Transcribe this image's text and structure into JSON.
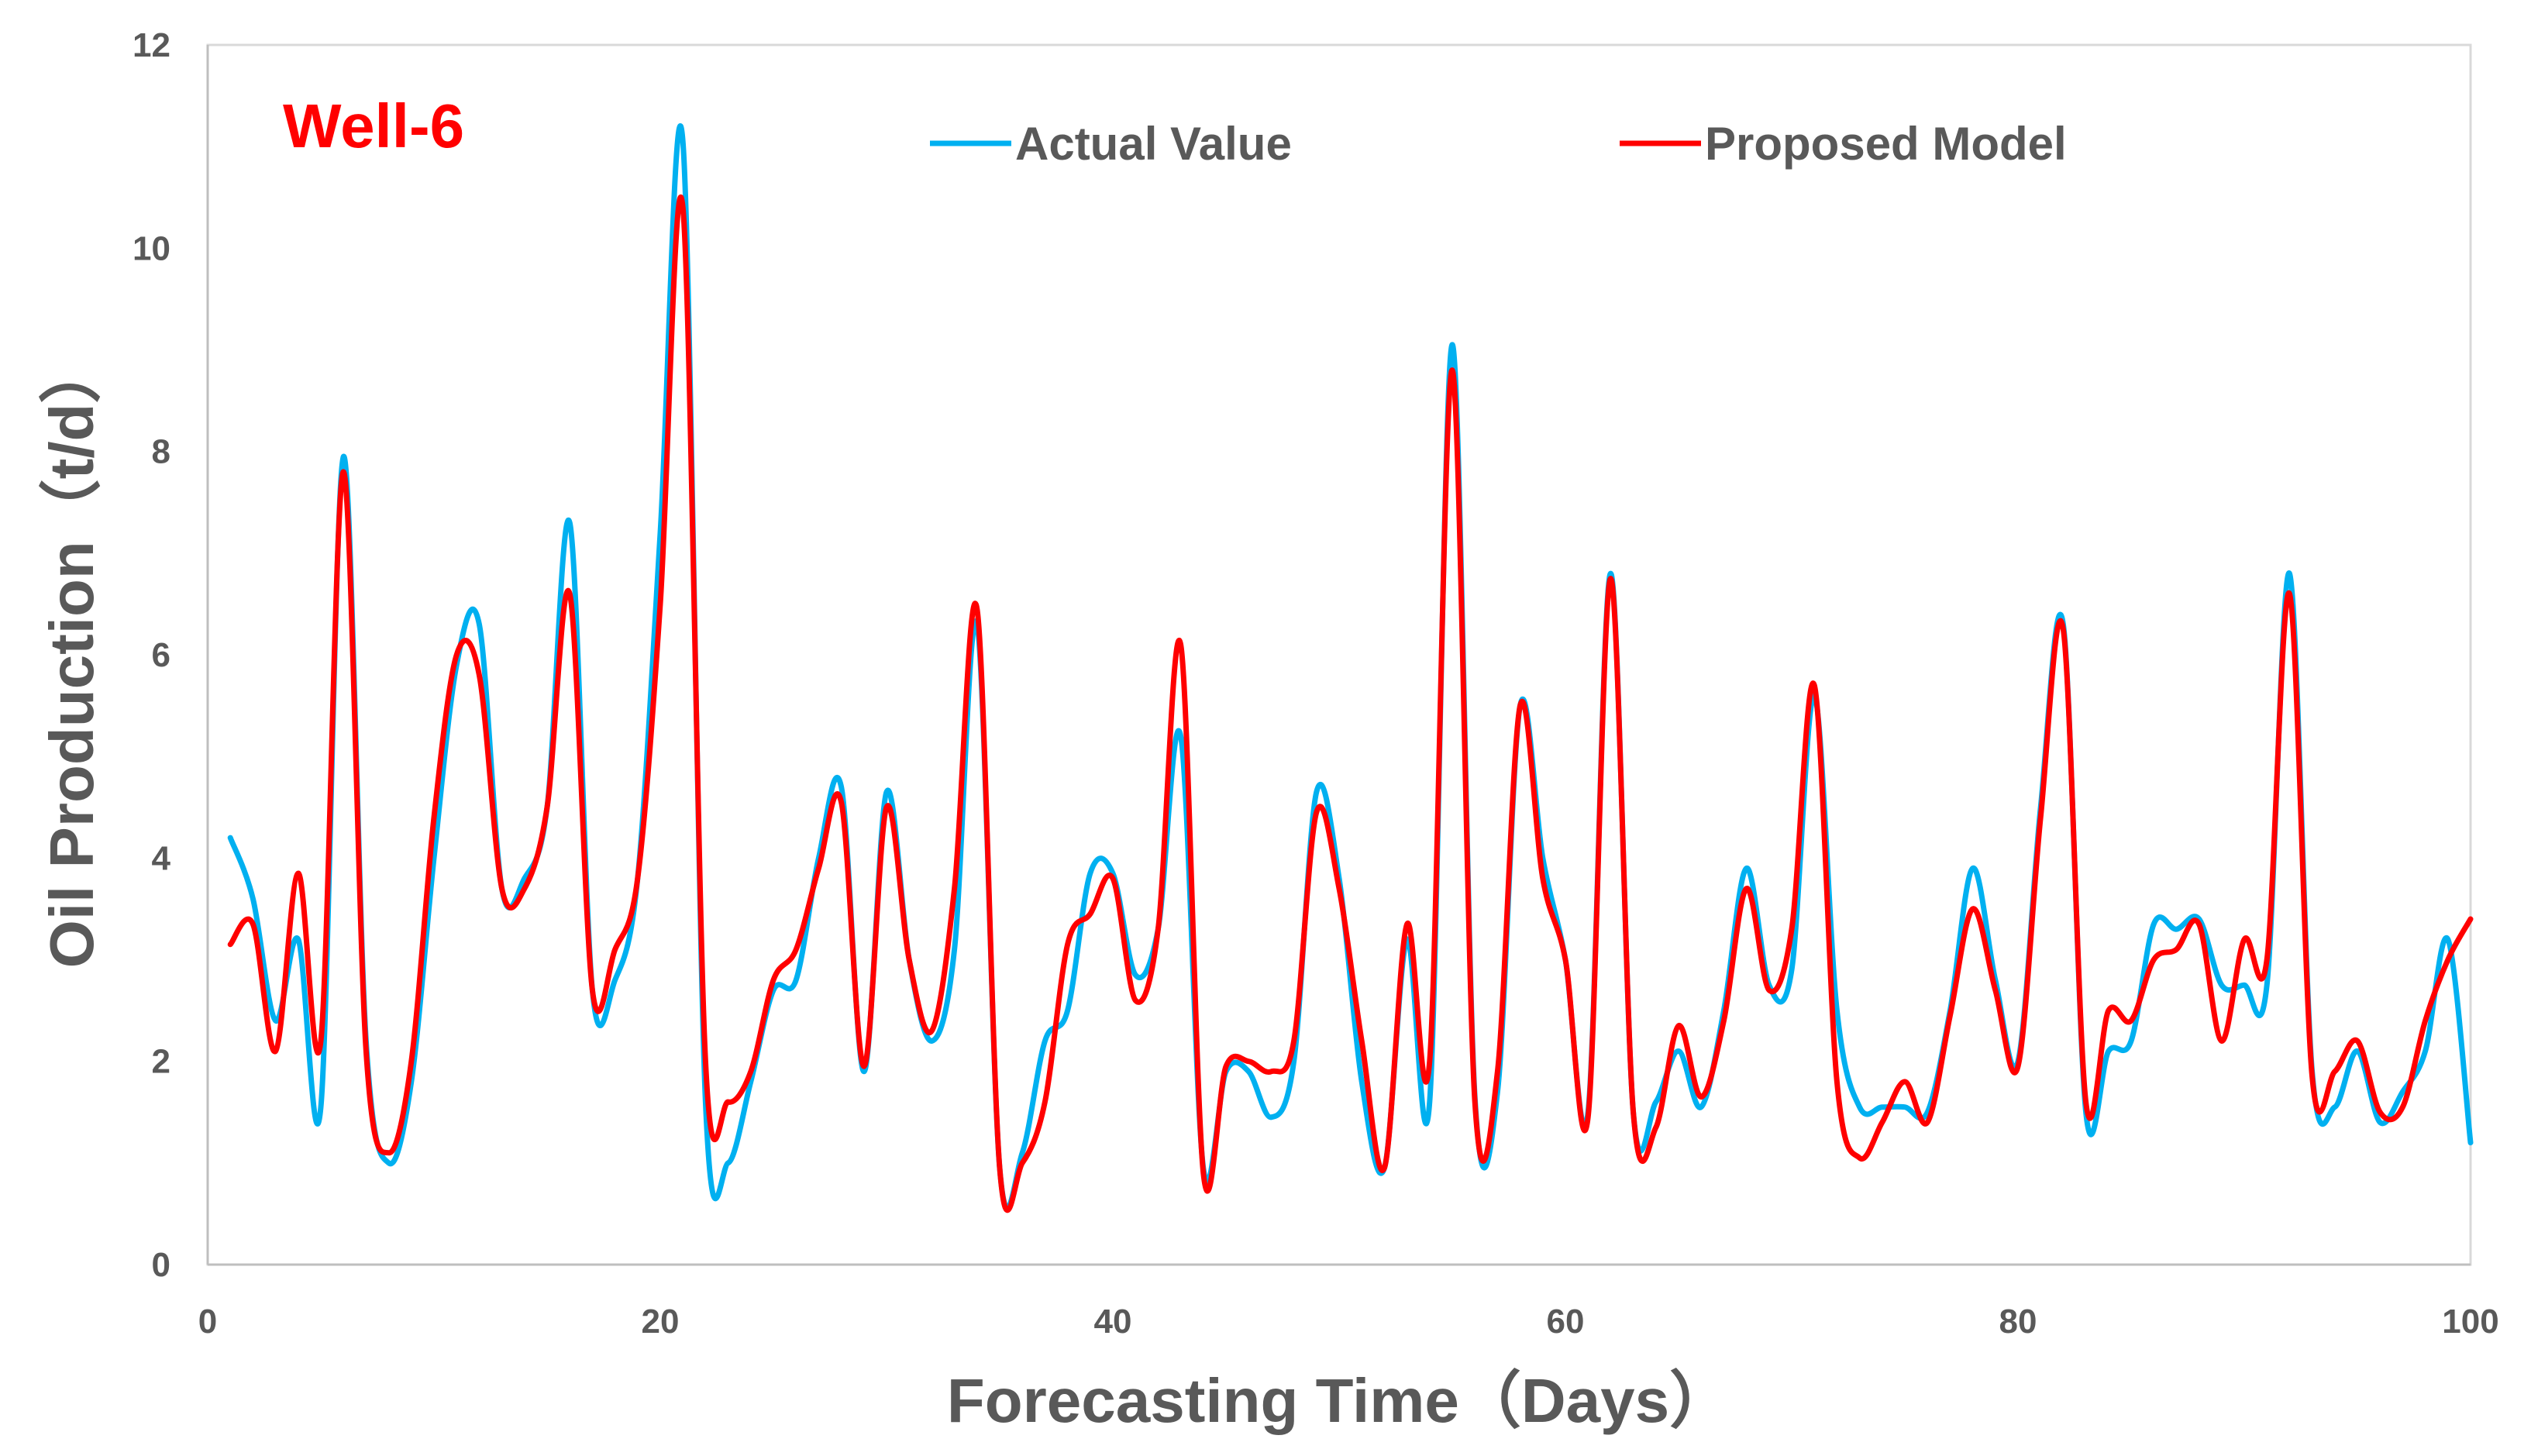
{
  "chart_data": {
    "type": "line",
    "title": "",
    "annotation": "Well-6",
    "xlabel": "Forecasting Time（Days）",
    "ylabel": "Oil Production（t/d）",
    "xlim": [
      0,
      100
    ],
    "ylim": [
      0,
      12
    ],
    "x_ticks": [
      0,
      20,
      40,
      60,
      80,
      100
    ],
    "y_ticks": [
      0,
      2,
      4,
      6,
      8,
      10,
      12
    ],
    "grid": false,
    "legend_position": "top",
    "x": [
      1,
      2,
      3,
      4,
      5,
      6,
      7,
      8,
      9,
      10,
      11,
      12,
      13,
      14,
      15,
      16,
      17,
      18,
      19,
      20,
      21,
      22,
      23,
      24,
      25,
      26,
      27,
      28,
      29,
      30,
      31,
      32,
      33,
      34,
      35,
      36,
      37,
      38,
      39,
      40,
      41,
      42,
      43,
      44,
      45,
      46,
      47,
      48,
      49,
      50,
      51,
      52,
      53,
      54,
      55,
      56,
      57,
      58,
      59,
      60,
      61,
      62,
      63,
      64,
      65,
      66,
      67,
      68,
      69,
      70,
      71,
      72,
      73,
      74,
      75,
      76,
      77,
      78,
      79,
      80,
      81,
      82,
      83,
      84,
      85,
      86,
      87,
      88,
      89,
      90,
      91,
      92,
      93,
      94,
      95,
      96,
      97,
      98,
      99,
      100
    ],
    "series": [
      {
        "name": "Actual Value",
        "color": "#00B0F0",
        "values": [
          4.2,
          3.6,
          2.4,
          3.2,
          1.55,
          7.95,
          2.2,
          1.0,
          1.8,
          4.0,
          5.9,
          6.3,
          3.7,
          3.8,
          4.5,
          7.3,
          2.7,
          2.8,
          3.8,
          7.2,
          11.05,
          1.6,
          1.0,
          1.8,
          2.7,
          2.8,
          4.0,
          4.7,
          1.9,
          4.65,
          3.0,
          2.2,
          3.1,
          6.3,
          0.95,
          1.1,
          2.2,
          2.5,
          3.85,
          3.85,
          2.85,
          3.3,
          5.2,
          0.95,
          1.9,
          1.9,
          1.45,
          2.0,
          4.65,
          3.8,
          1.8,
          0.95,
          3.2,
          1.6,
          9.05,
          1.65,
          1.7,
          5.5,
          4.0,
          3.0,
          1.5,
          6.8,
          1.5,
          1.6,
          2.1,
          1.55,
          2.5,
          3.9,
          2.75,
          2.9,
          5.6,
          2.5,
          1.55,
          1.55,
          1.55,
          1.5,
          2.5,
          3.9,
          2.8,
          2.0,
          4.5,
          6.3,
          1.5,
          2.1,
          2.2,
          3.35,
          3.3,
          3.4,
          2.75,
          2.75,
          2.75,
          6.8,
          1.9,
          1.55,
          2.1,
          1.4,
          1.7,
          2.1,
          3.2,
          1.2
        ]
      },
      {
        "name": "Proposed Model",
        "color": "#FF0000",
        "values": [
          3.15,
          3.35,
          2.1,
          3.85,
          2.2,
          7.8,
          2.1,
          1.1,
          2.0,
          4.4,
          6.0,
          5.8,
          3.7,
          3.7,
          4.5,
          6.6,
          2.7,
          3.1,
          3.8,
          6.5,
          10.4,
          2.0,
          1.6,
          1.9,
          2.8,
          3.1,
          3.9,
          4.55,
          1.95,
          4.5,
          3.0,
          2.3,
          3.7,
          6.45,
          0.95,
          1.0,
          1.6,
          3.15,
          3.45,
          3.8,
          2.6,
          3.3,
          6.1,
          0.9,
          1.95,
          2.0,
          1.9,
          2.2,
          4.45,
          3.7,
          2.2,
          0.95,
          3.35,
          2.0,
          8.8,
          1.6,
          1.9,
          5.5,
          3.8,
          3.0,
          1.45,
          6.75,
          1.5,
          1.35,
          2.35,
          1.65,
          2.4,
          3.7,
          2.7,
          3.3,
          5.7,
          1.8,
          1.05,
          1.4,
          1.8,
          1.4,
          2.45,
          3.5,
          2.7,
          1.95,
          4.4,
          6.25,
          1.6,
          2.5,
          2.4,
          3.0,
          3.1,
          3.35,
          2.2,
          3.2,
          3.0,
          6.6,
          1.85,
          1.9,
          2.2,
          1.5,
          1.55,
          2.4,
          3.0,
          3.4
        ]
      }
    ]
  }
}
